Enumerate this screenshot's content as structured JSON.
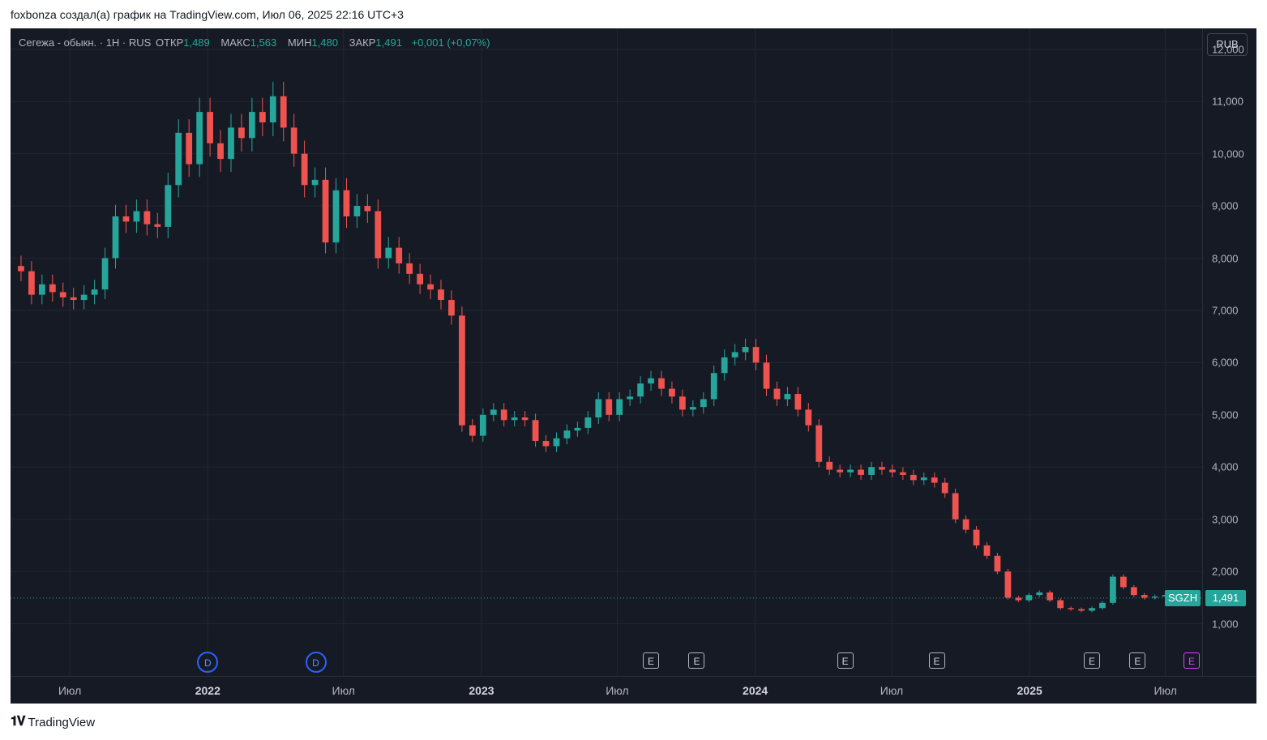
{
  "caption": "foxbonza создал(а) график на TradingView.com, Июл 06, 2025 22:16 UTC+3",
  "legend": {
    "symbol": "Сегежа - обыкн. · 1H · RUS",
    "open_label": "ОТКР",
    "open": "1,489",
    "high_label": "МАКС",
    "high": "1,563",
    "low_label": "МИН",
    "low": "1,480",
    "close_label": "ЗАКР",
    "close": "1,491",
    "change": "+0,001 (+0,07%)"
  },
  "currency": "RUB",
  "last_price": {
    "ticker": "SGZH",
    "value": "1,491"
  },
  "events": [
    {
      "type": "D",
      "label": "D",
      "x": "2022-01-01"
    },
    {
      "type": "D",
      "label": "D",
      "x": "2022-05-25"
    },
    {
      "type": "E",
      "label": "E",
      "x": "2023-08-15"
    },
    {
      "type": "E",
      "label": "E",
      "x": "2023-10-15"
    },
    {
      "type": "E",
      "label": "E",
      "x": "2024-04-30"
    },
    {
      "type": "E",
      "label": "E",
      "x": "2024-08-30"
    },
    {
      "type": "E",
      "label": "E",
      "x": "2025-03-25"
    },
    {
      "type": "E",
      "label": "E",
      "x": "2025-05-25"
    },
    {
      "type": "future",
      "label": "E",
      "x": "2025-08-05"
    }
  ],
  "footer": {
    "brand": "TradingView",
    "icon": "tradingview-logo-icon"
  },
  "colors": {
    "up": "#26a69a",
    "down": "#ef5350",
    "background": "#161a25",
    "grid": "#232632"
  },
  "chart_data": {
    "type": "candlestick",
    "title": "",
    "x_type": "date",
    "ylim": [
      0.0,
      12.4
    ],
    "grid": true,
    "y_ticks": [
      "1,000",
      "2,000",
      "3,000",
      "4,000",
      "5,000",
      "6,000",
      "7,000",
      "8,000",
      "9,000",
      "10,000",
      "11,000",
      "12,000"
    ],
    "y_tick_values": [
      1,
      2,
      3,
      4,
      5,
      6,
      7,
      8,
      9,
      10,
      11,
      12
    ],
    "x_ticks": [
      {
        "label": "Июл",
        "x": "2021-07-01",
        "bold": false
      },
      {
        "label": "2022",
        "x": "2022-01-01",
        "bold": true
      },
      {
        "label": "Июл",
        "x": "2022-07-01",
        "bold": false
      },
      {
        "label": "2023",
        "x": "2023-01-01",
        "bold": true
      },
      {
        "label": "Июл",
        "x": "2023-07-01",
        "bold": false
      },
      {
        "label": "2024",
        "x": "2024-01-01",
        "bold": true
      },
      {
        "label": "Июл",
        "x": "2024-07-01",
        "bold": false
      },
      {
        "label": "2025",
        "x": "2025-01-01",
        "bold": true
      },
      {
        "label": "Июл",
        "x": "2025-07-01",
        "bold": false
      }
    ],
    "series": [
      {
        "x": "2021-04-13",
        "values": [
          7.85,
          7.75,
          7.3,
          7.5,
          7.35,
          7.25,
          7.2,
          7.3,
          7.4,
          8.0,
          8.8,
          8.7,
          8.9,
          8.65,
          8.6,
          9.4,
          10.4,
          9.8,
          10.8,
          10.2,
          9.9,
          10.5,
          10.3,
          10.8,
          10.6,
          11.1,
          10.5,
          10.0,
          9.4,
          9.5,
          8.3,
          9.3,
          8.8,
          9.0,
          8.9,
          8.0,
          8.2,
          7.9,
          7.7,
          7.5,
          7.4,
          7.2,
          6.9,
          4.8,
          4.6,
          5.0,
          5.1,
          4.9,
          4.95,
          4.9,
          4.5,
          4.4,
          4.55,
          4.7,
          4.75,
          4.95,
          5.3,
          5.0,
          5.3,
          5.35,
          5.6,
          5.7,
          5.5,
          5.35,
          5.1,
          5.15,
          5.3,
          5.8,
          6.1,
          6.2,
          6.3,
          6.0,
          5.5,
          5.3,
          5.4,
          5.1,
          4.8,
          4.1,
          3.95,
          3.9,
          3.95,
          3.85,
          4.0,
          3.95,
          3.9,
          3.85,
          3.75,
          3.8,
          3.7,
          3.5,
          3.0,
          2.8,
          2.5,
          2.3,
          2.0,
          1.5,
          1.45,
          1.55,
          1.6,
          1.45,
          1.3,
          1.28,
          1.25,
          1.3,
          1.4,
          1.9,
          1.7,
          1.55,
          1.5,
          1.52,
          1.55,
          1.49
        ]
      }
    ]
  }
}
